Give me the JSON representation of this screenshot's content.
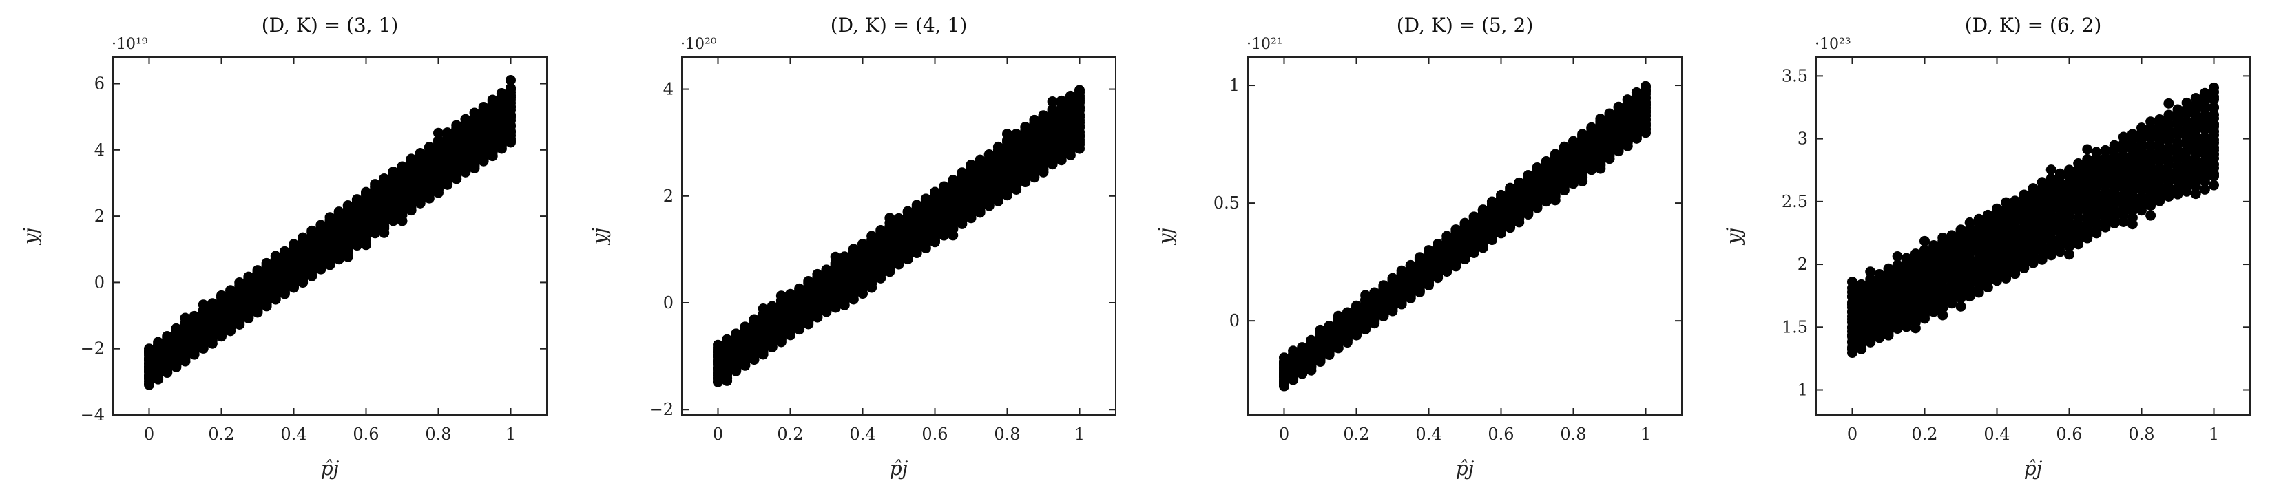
{
  "chart_data": [
    {
      "type": "scatter",
      "title": "(D, K) = (3, 1)",
      "xlabel": "p̂j",
      "ylabel": "yj",
      "y_multiplier": "·10¹⁹",
      "xlim": [
        -0.1,
        1.1
      ],
      "ylim": [
        -4,
        6.8
      ],
      "xticks": [
        0,
        0.2,
        0.4,
        0.6,
        0.8,
        1
      ],
      "xtick_labels": [
        "0",
        "0.2",
        "0.4",
        "0.6",
        "0.8",
        "1"
      ],
      "yticks": [
        -4,
        -2,
        0,
        2,
        4,
        6
      ],
      "ytick_labels": [
        "−4",
        "−2",
        "0",
        "2",
        "4",
        "6"
      ],
      "grid": false,
      "series": [
        {
          "x_start": 0,
          "x_end": 1,
          "x_step": 0.025,
          "y_low_at_x0": -3.1,
          "y_low_at_x1": 4.2,
          "y_high_at_x0": -2.0,
          "y_high_at_x1": 5.9
        }
      ]
    },
    {
      "type": "scatter",
      "title": "(D, K) = (4, 1)",
      "xlabel": "p̂j",
      "ylabel": "yj",
      "y_multiplier": "·10²⁰",
      "xlim": [
        -0.1,
        1.1
      ],
      "ylim": [
        -2.1,
        4.6
      ],
      "xticks": [
        0,
        0.2,
        0.4,
        0.6,
        0.8,
        1
      ],
      "xtick_labels": [
        "0",
        "0.2",
        "0.4",
        "0.6",
        "0.8",
        "1"
      ],
      "yticks": [
        -2,
        0,
        2,
        4
      ],
      "ytick_labels": [
        "−2",
        "0",
        "2",
        "4"
      ],
      "grid": false,
      "series": [
        {
          "x_start": 0,
          "x_end": 1,
          "x_step": 0.025,
          "y_low_at_x0": -1.5,
          "y_low_at_x1": 2.9,
          "y_high_at_x0": -0.8,
          "y_high_at_x1": 4.0
        }
      ]
    },
    {
      "type": "scatter",
      "title": "(D, K) = (5, 2)",
      "xlabel": "p̂j",
      "ylabel": "yj",
      "y_multiplier": "·10²¹",
      "xlim": [
        -0.1,
        1.1
      ],
      "ylim": [
        -0.4,
        1.12
      ],
      "xticks": [
        0,
        0.2,
        0.4,
        0.6,
        0.8,
        1
      ],
      "xtick_labels": [
        "0",
        "0.2",
        "0.4",
        "0.6",
        "0.8",
        "1"
      ],
      "yticks": [
        0,
        0.5,
        1
      ],
      "ytick_labels": [
        "0",
        "0.5",
        "1"
      ],
      "grid": false,
      "series": [
        {
          "x_start": 0,
          "x_end": 1,
          "x_step": 0.025,
          "y_low_at_x0": -0.28,
          "y_low_at_x1": 0.8,
          "y_high_at_x0": -0.17,
          "y_high_at_x1": 1.0
        }
      ]
    },
    {
      "type": "scatter",
      "title": "(D, K) = (6, 2)",
      "xlabel": "p̂j",
      "ylabel": "yj",
      "y_multiplier": "·10²³",
      "xlim": [
        -0.1,
        1.1
      ],
      "ylim": [
        0.8,
        3.65
      ],
      "xticks": [
        0,
        0.2,
        0.4,
        0.6,
        0.8,
        1
      ],
      "xtick_labels": [
        "0",
        "0.2",
        "0.4",
        "0.6",
        "0.8",
        "1"
      ],
      "yticks": [
        1,
        1.5,
        2,
        2.5,
        3,
        3.5
      ],
      "ytick_labels": [
        "1",
        "1.5",
        "2",
        "2.5",
        "3",
        "3.5"
      ],
      "grid": false,
      "series": [
        {
          "x_start": 0,
          "x_end": 1,
          "x_step": 0.025,
          "y_low_at_x0": 1.3,
          "y_low_at_x1": 2.7,
          "y_high_at_x0": 1.8,
          "y_high_at_x1": 3.4
        }
      ]
    }
  ]
}
